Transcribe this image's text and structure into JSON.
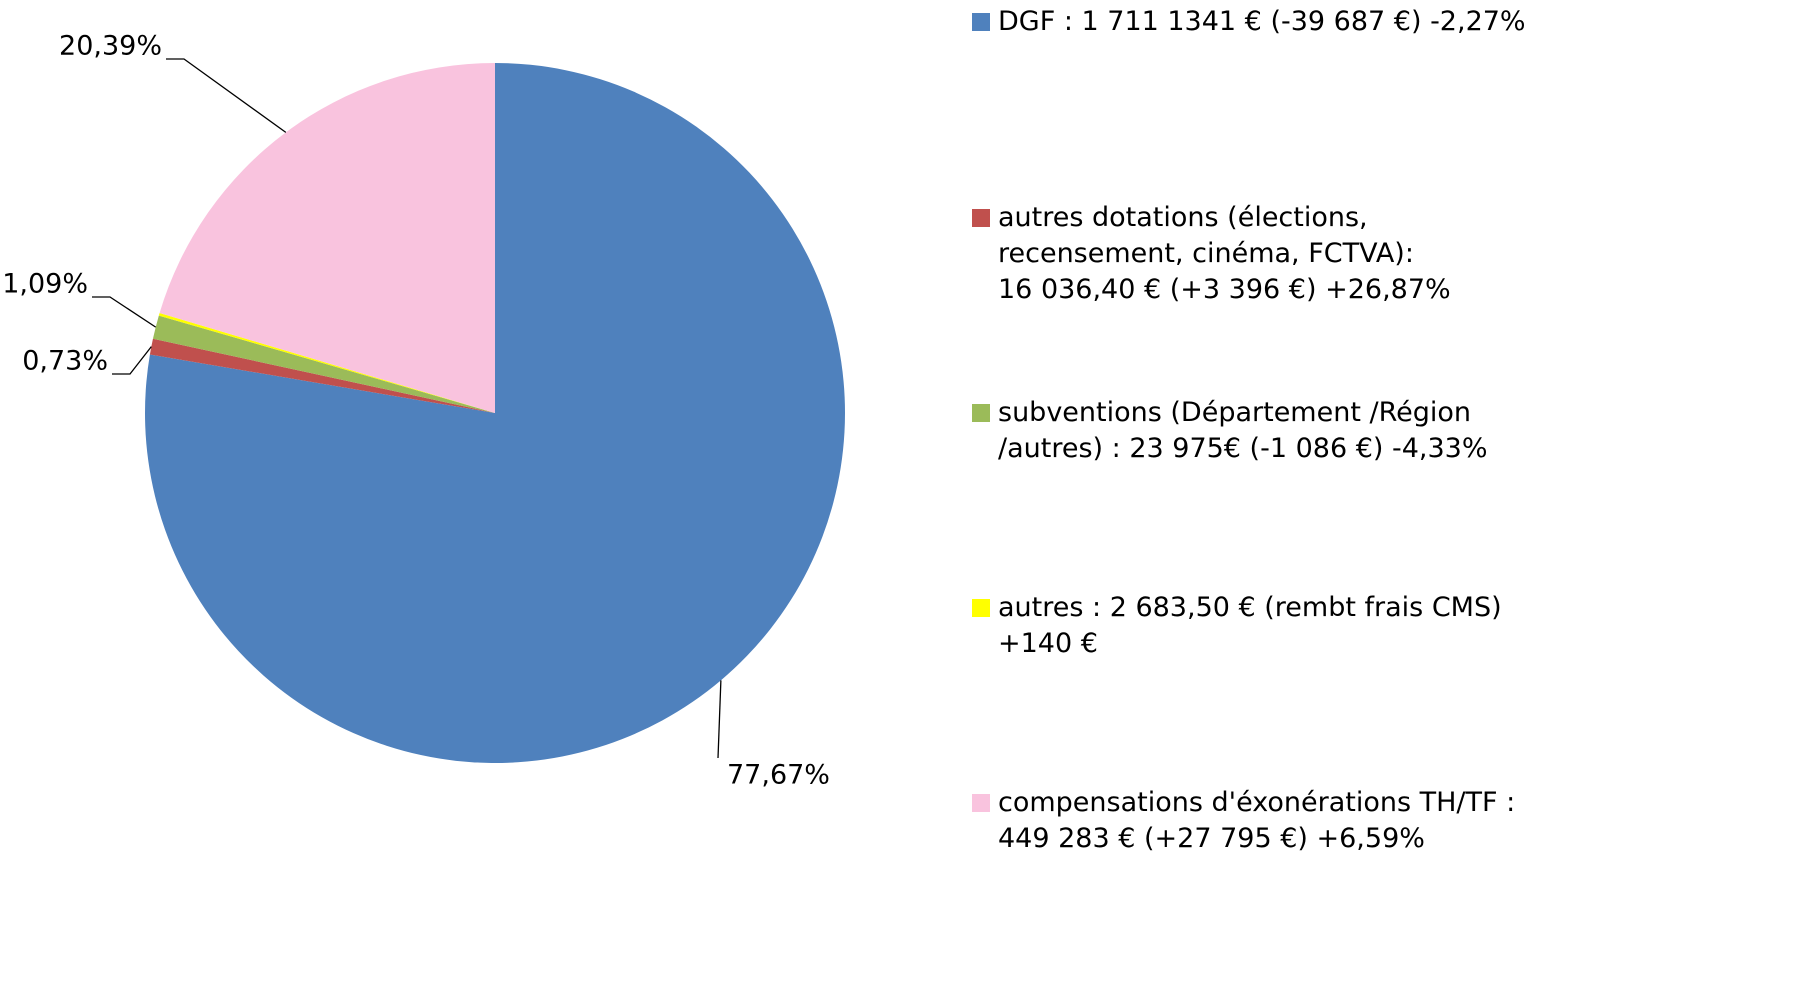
{
  "chart_data": {
    "type": "pie",
    "categories": [
      "DGF : 1 711 1341 € (-39 687 €) -2,27%",
      "autres dotations (élections,\nrecensement, cinéma, FCTVA):\n16 036,40 €  (+3 396 €) +26,87%",
      "subventions (Département /Région\n/autres) : 23 975€ (-1 086 €) -4,33%",
      "autres  : 2 683,50 € (rembt frais CMS)\n+140 €",
      "compensations d'éxonérations TH/TF :\n449 283 € (+27 795 €) +6,59%"
    ],
    "values": [
      77.67,
      0.73,
      1.09,
      0.12,
      20.39
    ],
    "value_labels": [
      "77,67%",
      "0,73%",
      "1,09%",
      null,
      "20,39%"
    ],
    "colors": [
      "#4f81bd",
      "#c0504d",
      "#9bbb59",
      "#ffff00",
      "#f9c3de"
    ],
    "legend": "right"
  }
}
